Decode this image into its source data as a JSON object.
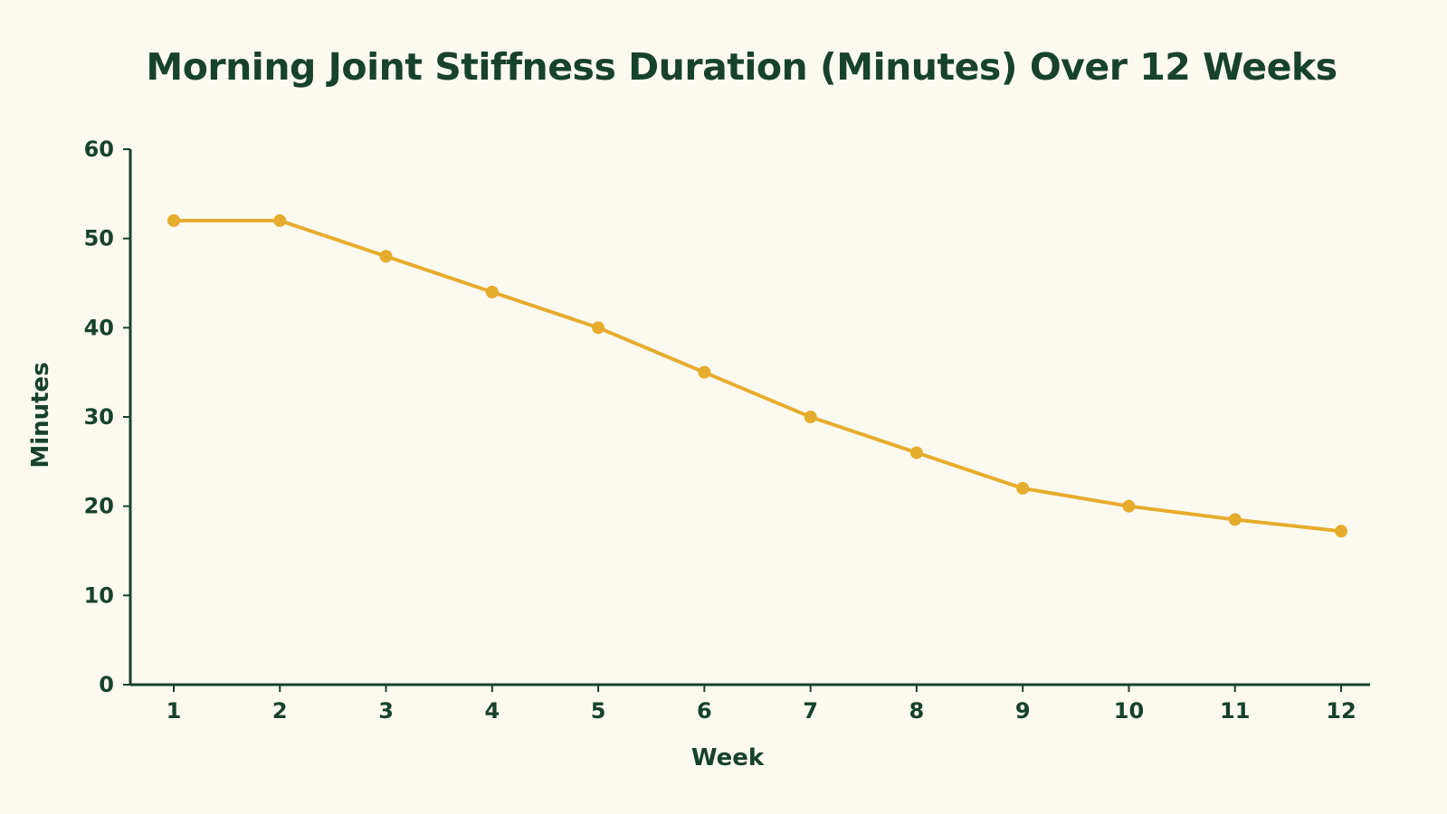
{
  "chart_data": {
    "type": "line",
    "title": "Morning Joint Stiffness Duration (Minutes) Over 12 Weeks",
    "xlabel": "Week",
    "ylabel": "Minutes",
    "x": [
      "1",
      "2",
      "3",
      "4",
      "5",
      "6",
      "7",
      "8",
      "9",
      "10",
      "11",
      "12"
    ],
    "y_ticks": [
      "0",
      "10",
      "20",
      "30",
      "40",
      "50",
      "60"
    ],
    "ylim": [
      0,
      60
    ],
    "grid": false,
    "legend": "none",
    "series": [
      {
        "values": [
          52,
          52,
          48,
          44,
          40,
          35,
          30,
          26,
          22,
          20,
          18.5,
          17.2
        ],
        "color": "#e6ac2c"
      }
    ]
  },
  "colors": {
    "background": "#fcf9f1",
    "text": "#17422c",
    "axis": "#17422c",
    "line": "#e6ac2c"
  }
}
